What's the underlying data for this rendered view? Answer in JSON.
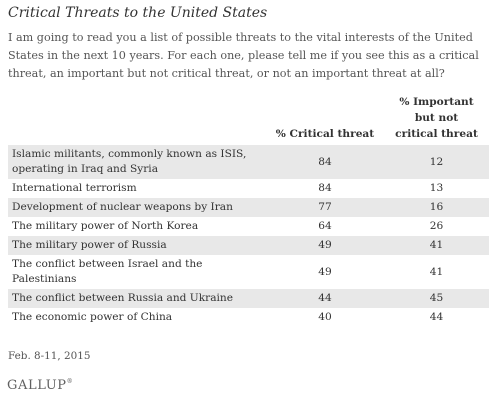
{
  "title": "Critical Threats to the United States",
  "intro": "I am going to read you a list of possible threats to the vital interests of the United States in the next 10 years. For each one, please tell me if you see this as a critical threat, an important but not critical threat, or not an important threat at all?",
  "table": {
    "headers": {
      "critical": "% Critical threat",
      "important_line1": "% Important",
      "important_line2": "but not",
      "important_line3": "critical threat"
    },
    "rows": [
      {
        "item": "Islamic militants, commonly known as ISIS, operating in Iraq and Syria",
        "critical": "84",
        "important": "12"
      },
      {
        "item": "International terrorism",
        "critical": "84",
        "important": "13"
      },
      {
        "item": "Development of nuclear weapons by Iran",
        "critical": "77",
        "important": "16"
      },
      {
        "item": "The military power of North Korea",
        "critical": "64",
        "important": "26"
      },
      {
        "item": "The military power of Russia",
        "critical": "49",
        "important": "41"
      },
      {
        "item": "The conflict between Israel and the Palestinians",
        "critical": "49",
        "important": "41"
      },
      {
        "item": "The conflict between Russia and Ukraine",
        "critical": "44",
        "important": "45"
      },
      {
        "item": "The economic power of China",
        "critical": "40",
        "important": "44"
      }
    ]
  },
  "footnote": "Feb. 8-11, 2015",
  "logo": {
    "text": "GALLUP",
    "mark": "®"
  },
  "colors": {
    "row_shade": "#e8e8e8",
    "text": "#333333"
  }
}
